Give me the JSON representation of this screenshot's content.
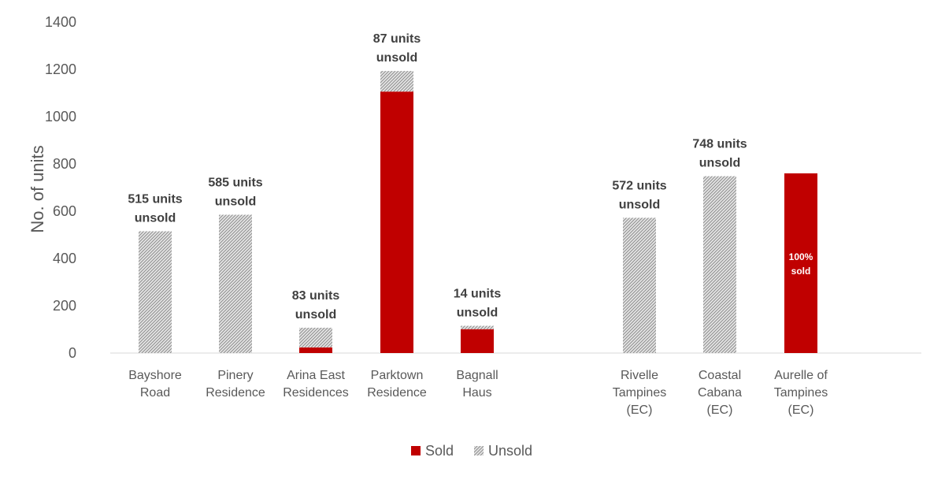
{
  "chart_data": {
    "type": "bar",
    "stacked": true,
    "ylabel": "No. of units",
    "ylim": [
      0,
      1400
    ],
    "yticks": [
      "0",
      "200",
      "400",
      "600",
      "800",
      "1000",
      "1200",
      "1400"
    ],
    "categories": [
      [
        "Bayshore",
        "Road"
      ],
      [
        "Pinery",
        "Residence"
      ],
      [
        "Arina East",
        "Residences"
      ],
      [
        "Parktown",
        "Residence"
      ],
      [
        "Bagnall",
        "Haus"
      ],
      [
        "Rivelle",
        "Tampines",
        "(EC)"
      ],
      [
        "Coastal",
        "Cabana",
        "(EC)"
      ],
      [
        "Aurelle of",
        "Tampines",
        "(EC)"
      ]
    ],
    "series": [
      {
        "name": "Sold",
        "values": [
          0,
          0,
          24,
          1106,
          101,
          0,
          0,
          760
        ]
      },
      {
        "name": "Unsold",
        "values": [
          515,
          585,
          83,
          87,
          14,
          572,
          748,
          0
        ]
      }
    ],
    "annotations": [
      [
        "515 units",
        "unsold"
      ],
      [
        "585 units",
        "unsold"
      ],
      [
        "83 units",
        "unsold"
      ],
      [
        "87 units",
        "unsold"
      ],
      [
        "14 units",
        "unsold"
      ],
      [
        "572 units",
        "unsold"
      ],
      [
        "748 units",
        "unsold"
      ],
      [
        "100%",
        "sold"
      ]
    ],
    "annotation_inside": [
      false,
      false,
      false,
      false,
      false,
      false,
      false,
      true
    ],
    "colors": {
      "Sold": "#C00000",
      "Unsold": "#BFBFBF",
      "axis": "#D9D9D9",
      "text": "#595959",
      "annotation": "#404040"
    },
    "legend_position": "bottom",
    "grid": false
  }
}
